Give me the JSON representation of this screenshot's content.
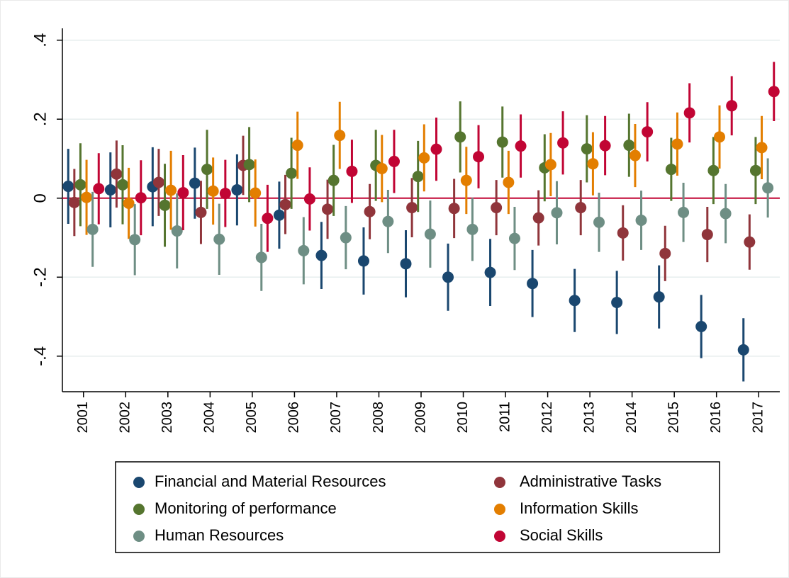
{
  "chart_data": {
    "type": "coefplot",
    "categories": [
      "2001",
      "2002",
      "2003",
      "2004",
      "2005",
      "2006",
      "2007",
      "2008",
      "2009",
      "2010",
      "2011",
      "2012",
      "2013",
      "2014",
      "2015",
      "2016",
      "2017"
    ],
    "series": [
      {
        "name": "Financial and Material Resources",
        "color": "#1a476f",
        "values": [
          0.03,
          0.021,
          0.029,
          0.038,
          0.021,
          -0.043,
          -0.145,
          -0.159,
          -0.166,
          -0.2,
          -0.188,
          -0.216,
          -0.259,
          -0.264,
          -0.25,
          -0.325,
          -0.384
        ],
        "errors": [
          0.095,
          0.095,
          0.1,
          0.09,
          0.09,
          0.085,
          0.085,
          0.085,
          0.085,
          0.085,
          0.085,
          0.085,
          0.08,
          0.08,
          0.08,
          0.08,
          0.08
        ]
      },
      {
        "name": "Administrative Tasks",
        "color": "#90353b",
        "values": [
          -0.011,
          0.061,
          0.04,
          -0.036,
          0.083,
          -0.016,
          -0.028,
          -0.034,
          -0.024,
          -0.026,
          -0.024,
          -0.05,
          -0.024,
          -0.088,
          -0.14,
          -0.092,
          -0.111
        ],
        "errors": [
          0.085,
          0.085,
          0.085,
          0.08,
          0.075,
          0.075,
          0.075,
          0.07,
          0.075,
          0.075,
          0.07,
          0.07,
          0.07,
          0.07,
          0.07,
          0.07,
          0.07
        ]
      },
      {
        "name": "Monitoring of performance",
        "color": "#55752f",
        "values": [
          0.034,
          0.034,
          -0.018,
          0.073,
          0.085,
          0.063,
          0.045,
          0.083,
          0.055,
          0.155,
          0.142,
          0.077,
          0.125,
          0.134,
          0.073,
          0.07,
          0.07
        ],
        "errors": [
          0.105,
          0.1,
          0.105,
          0.1,
          0.095,
          0.09,
          0.09,
          0.09,
          0.09,
          0.09,
          0.09,
          0.085,
          0.085,
          0.08,
          0.08,
          0.085,
          0.085
        ]
      },
      {
        "name": "Information Skills",
        "color": "#e37e00",
        "values": [
          0.002,
          -0.013,
          0.02,
          0.018,
          0.013,
          0.134,
          0.159,
          0.075,
          0.102,
          0.045,
          0.04,
          0.085,
          0.087,
          0.108,
          0.137,
          0.155,
          0.128
        ],
        "errors": [
          0.095,
          0.09,
          0.1,
          0.085,
          0.085,
          0.085,
          0.085,
          0.085,
          0.085,
          0.085,
          0.08,
          0.08,
          0.08,
          0.08,
          0.08,
          0.08,
          0.08
        ]
      },
      {
        "name": "Human Resources",
        "color": "#6e8e84",
        "values": [
          -0.079,
          -0.105,
          -0.083,
          -0.104,
          -0.15,
          -0.133,
          -0.1,
          -0.059,
          -0.091,
          -0.079,
          -0.102,
          -0.037,
          -0.061,
          -0.056,
          -0.036,
          -0.039,
          0.026
        ],
        "errors": [
          0.095,
          0.09,
          0.095,
          0.09,
          0.085,
          0.085,
          0.08,
          0.08,
          0.085,
          0.08,
          0.08,
          0.08,
          0.075,
          0.075,
          0.075,
          0.075,
          0.075
        ]
      },
      {
        "name": "Social Skills",
        "color": "#c10534",
        "values": [
          0.024,
          0.001,
          0.014,
          0.012,
          -0.051,
          -0.002,
          0.068,
          0.093,
          0.124,
          0.105,
          0.132,
          0.14,
          0.133,
          0.168,
          0.216,
          0.234,
          0.27
        ],
        "errors": [
          0.09,
          0.095,
          0.095,
          0.085,
          0.085,
          0.08,
          0.08,
          0.08,
          0.08,
          0.08,
          0.08,
          0.08,
          0.075,
          0.075,
          0.075,
          0.075,
          0.075
        ]
      }
    ],
    "ylim": [
      -0.49,
      0.43
    ],
    "yticks": [
      {
        "value": -0.4,
        "label": "-.4"
      },
      {
        "value": -0.2,
        "label": "-.2"
      },
      0,
      {
        "value": 0.2,
        "label": ".2"
      },
      {
        "value": 0.4,
        "label": ".4"
      }
    ],
    "grid": true,
    "hline": 0,
    "hline_color": "#c10534",
    "legend": "bottom"
  }
}
